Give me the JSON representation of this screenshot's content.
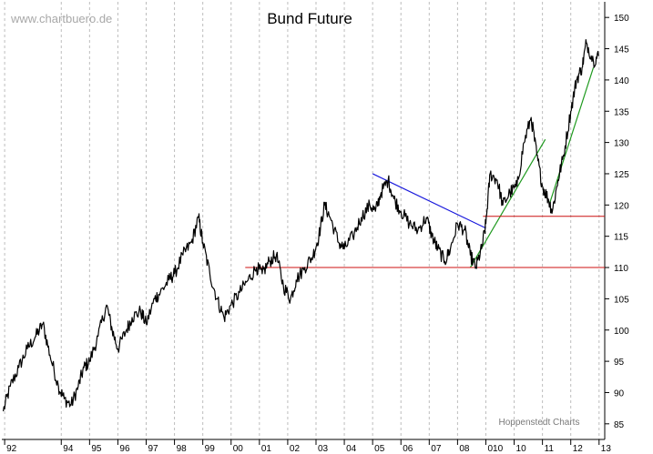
{
  "header": {
    "watermark": "www.chartbuero.de",
    "credit": "Hoppenstedt Charts"
  },
  "chart_data": {
    "type": "line",
    "title": "Bund Future",
    "xlabel": "",
    "ylabel": "",
    "x_tick_labels": [
      "92",
      "94",
      "95",
      "96",
      "97",
      "98",
      "99",
      "00",
      "01",
      "02",
      "03",
      "04",
      "05",
      "06",
      "07",
      "08",
      "010",
      "10",
      "11",
      "12",
      "13"
    ],
    "x_tick_years": [
      1992,
      1994,
      1995,
      1996,
      1997,
      1998,
      1999,
      2000,
      2001,
      2002,
      2003,
      2004,
      2005,
      2006,
      2007,
      2008,
      2009,
      2010,
      2011,
      2012,
      2013
    ],
    "xlim": [
      1991.9,
      2013.2
    ],
    "y_ticks": [
      85,
      90,
      95,
      100,
      105,
      110,
      115,
      120,
      125,
      130,
      135,
      140,
      145,
      150
    ],
    "ylim": [
      82.5,
      152.5
    ],
    "grid": "vertical-dashed",
    "series": [
      {
        "color": "#000000",
        "x": [
          1991.95,
          1992.2,
          1992.5,
          1992.8,
          1993.1,
          1993.35,
          1993.6,
          1993.9,
          1994.1,
          1994.35,
          1994.6,
          1994.8,
          1995.0,
          1995.3,
          1995.6,
          1995.8,
          1996.0,
          1996.3,
          1996.5,
          1996.8,
          1997.0,
          1997.3,
          1997.5,
          1997.8,
          1998.0,
          1998.3,
          1998.6,
          1998.85,
          1999.0,
          1999.25,
          1999.5,
          1999.75,
          2000.0,
          2000.3,
          2000.6,
          2000.9,
          2001.1,
          2001.35,
          2001.6,
          2001.85,
          2002.1,
          2002.3,
          2002.6,
          2002.9,
          2003.1,
          2003.3,
          2003.5,
          2003.8,
          2004.0,
          2004.3,
          2004.6,
          2004.9,
          2005.1,
          2005.3,
          2005.55,
          2005.75,
          2006.0,
          2006.3,
          2006.6,
          2006.9,
          2007.1,
          2007.3,
          2007.55,
          2007.75,
          2008.0,
          2008.25,
          2008.45,
          2008.65,
          2008.85,
          2009.0,
          2009.15,
          2009.4,
          2009.6,
          2009.85,
          2010.1,
          2010.35,
          2010.6,
          2010.8,
          2011.0,
          2011.2,
          2011.35,
          2011.55,
          2011.75,
          2012.0,
          2012.2,
          2012.4,
          2012.55,
          2012.8,
          2013.0
        ],
        "values": [
          87,
          91,
          94,
          97,
          99,
          101,
          96,
          91,
          89,
          88,
          91,
          94,
          95,
          99,
          104,
          100,
          97,
          100,
          102,
          103,
          101,
          105,
          106,
          108,
          109,
          112,
          114,
          118,
          114,
          109,
          105,
          102,
          104,
          106,
          108,
          110,
          109,
          111,
          112,
          107,
          105,
          108,
          110,
          112,
          115,
          120,
          118,
          114,
          113,
          115,
          118,
          120,
          119,
          122,
          124,
          121,
          119,
          117,
          116,
          118,
          115,
          113,
          111,
          113,
          117,
          116,
          112,
          110,
          113,
          117,
          125,
          124,
          120,
          122,
          123,
          130,
          134,
          128,
          123,
          121,
          119,
          124,
          128,
          135,
          140,
          142,
          146,
          143,
          144
        ]
      }
    ],
    "annotations": [
      {
        "type": "trendline",
        "color": "#1a1adc",
        "x": [
          2005.0,
          2009.0
        ],
        "y": [
          125.0,
          116.3
        ]
      },
      {
        "type": "trendline",
        "color": "#1f9a1f",
        "x": [
          2008.45,
          2011.1
        ],
        "y": [
          110.0,
          130.5
        ]
      },
      {
        "type": "trendline",
        "color": "#1f9a1f",
        "x": [
          2011.25,
          2012.8
        ],
        "y": [
          120.2,
          142.0
        ]
      },
      {
        "type": "hline",
        "color": "#cc1010",
        "x": [
          2000.5,
          2013.2
        ],
        "y": 110.0
      },
      {
        "type": "hline",
        "color": "#cc1010",
        "x": [
          2008.9,
          2013.2
        ],
        "y": 118.2
      }
    ]
  }
}
